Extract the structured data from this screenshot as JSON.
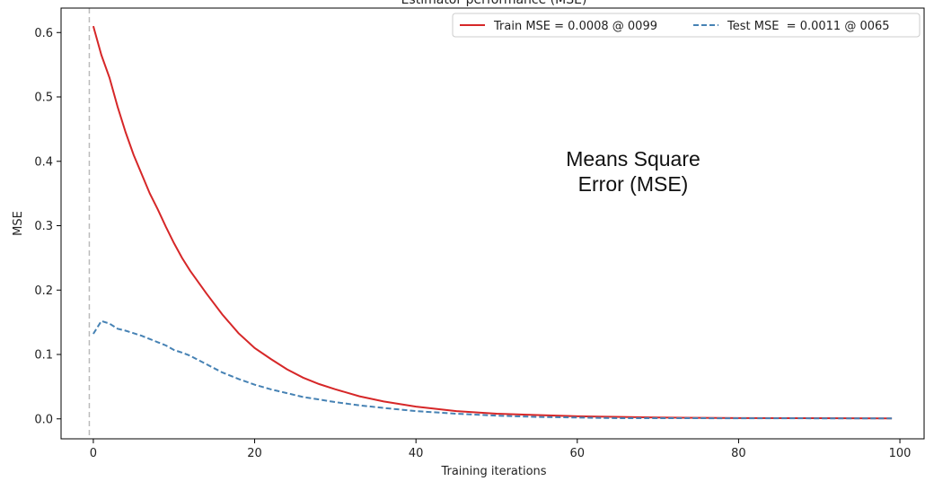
{
  "chart_data": {
    "type": "line",
    "title": "Estimator performance (MSE)",
    "xlabel": "Training iterations",
    "ylabel": "MSE",
    "xlim": [
      -4,
      103
    ],
    "ylim": [
      -0.031,
      0.638
    ],
    "xticks": [
      0,
      20,
      40,
      60,
      80,
      100
    ],
    "yticks": [
      0.0,
      0.1,
      0.2,
      0.3,
      0.4,
      0.5,
      0.6
    ],
    "xtick_labels": [
      "0",
      "20",
      "40",
      "60",
      "80",
      "100"
    ],
    "ytick_labels": [
      "0.0",
      "0.1",
      "0.2",
      "0.3",
      "0.4",
      "0.5",
      "0.6"
    ],
    "grid": false,
    "legend_position": "top-right",
    "vline_x": -0.5,
    "annotation": [
      "Means Square",
      "Error (MSE)"
    ],
    "series": [
      {
        "name": "Train MSE = 0.0008 @ 0099",
        "color": "#d62728",
        "style": "solid",
        "x": [
          0,
          1,
          2,
          3,
          4,
          5,
          6,
          7,
          8,
          9,
          10,
          11,
          12,
          14,
          16,
          18,
          20,
          22,
          24,
          26,
          28,
          30,
          33,
          36,
          40,
          45,
          50,
          55,
          60,
          70,
          80,
          90,
          99
        ],
        "y": [
          0.61,
          0.565,
          0.53,
          0.485,
          0.445,
          0.41,
          0.38,
          0.35,
          0.325,
          0.298,
          0.273,
          0.25,
          0.23,
          0.195,
          0.162,
          0.133,
          0.11,
          0.093,
          0.077,
          0.064,
          0.054,
          0.046,
          0.035,
          0.027,
          0.019,
          0.012,
          0.008,
          0.006,
          0.004,
          0.002,
          0.0012,
          0.001,
          0.0008
        ]
      },
      {
        "name": "Test MSE  = 0.0011 @ 0065",
        "color": "#4682b4",
        "style": "dashed",
        "x": [
          0,
          1,
          2,
          3,
          4,
          5,
          6,
          7,
          8,
          9,
          10,
          11,
          12,
          14,
          16,
          18,
          20,
          22,
          24,
          26,
          28,
          30,
          33,
          36,
          40,
          45,
          50,
          55,
          60,
          65,
          70,
          80,
          90,
          99
        ],
        "y": [
          0.132,
          0.152,
          0.148,
          0.14,
          0.137,
          0.133,
          0.129,
          0.124,
          0.119,
          0.114,
          0.107,
          0.103,
          0.098,
          0.085,
          0.072,
          0.062,
          0.053,
          0.046,
          0.04,
          0.034,
          0.03,
          0.026,
          0.021,
          0.017,
          0.012,
          0.008,
          0.005,
          0.003,
          0.002,
          0.0011,
          0.001,
          0.0009,
          0.0008,
          0.0008
        ]
      }
    ]
  }
}
